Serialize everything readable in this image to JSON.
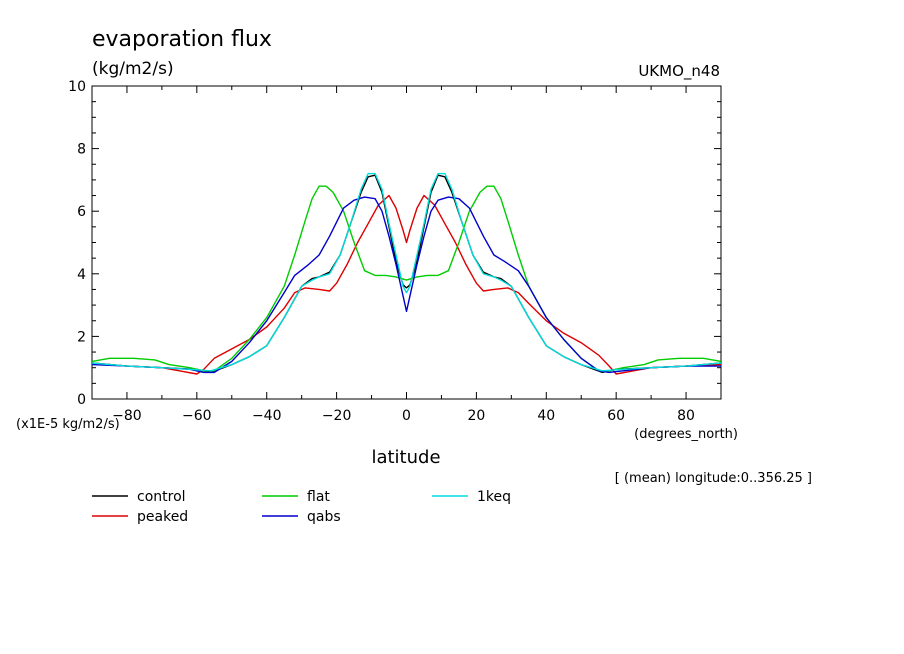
{
  "chart_data": {
    "type": "line",
    "title": "evaporation flux",
    "units_label": "(kg/m2/s)",
    "model_label": "UKMO_n48",
    "xlabel": "latitude",
    "x_units": "(degrees_north)",
    "y_scale_label": "(x1E-5 kg/m2/s)",
    "averaging_note": "[ (mean) longitude:0..356.25 ]",
    "xlim": [
      -90,
      90
    ],
    "ylim": [
      0,
      10
    ],
    "x_ticks": [
      -80,
      -60,
      -40,
      -20,
      0,
      20,
      40,
      60,
      80
    ],
    "x_tick_labels": [
      "−80",
      "−60",
      "−40",
      "−20",
      "0",
      "20",
      "40",
      "60",
      "80"
    ],
    "y_ticks": [
      0,
      2,
      4,
      6,
      8,
      10
    ],
    "y_tick_labels": [
      "0",
      "2",
      "4",
      "6",
      "8",
      "10"
    ],
    "grid": false,
    "series": [
      {
        "name": "control",
        "color": "#000000",
        "points": [
          [
            -90,
            1.15
          ],
          [
            -80,
            1.05
          ],
          [
            -70,
            1.0
          ],
          [
            -60,
            0.95
          ],
          [
            -56,
            0.85
          ],
          [
            -50,
            1.1
          ],
          [
            -45,
            1.35
          ],
          [
            -40,
            1.7
          ],
          [
            -35,
            2.6
          ],
          [
            -30,
            3.6
          ],
          [
            -27,
            3.85
          ],
          [
            -25,
            3.9
          ],
          [
            -22,
            4.05
          ],
          [
            -19,
            4.6
          ],
          [
            -16,
            5.6
          ],
          [
            -13,
            6.6
          ],
          [
            -11,
            7.1
          ],
          [
            -9,
            7.15
          ],
          [
            -7,
            6.6
          ],
          [
            -5,
            5.5
          ],
          [
            -3,
            4.4
          ],
          [
            -1,
            3.65
          ],
          [
            0,
            3.55
          ],
          [
            1,
            3.65
          ],
          [
            3,
            4.4
          ],
          [
            5,
            5.5
          ],
          [
            7,
            6.6
          ],
          [
            9,
            7.15
          ],
          [
            11,
            7.1
          ],
          [
            13,
            6.6
          ],
          [
            16,
            5.6
          ],
          [
            19,
            4.6
          ],
          [
            22,
            4.05
          ],
          [
            25,
            3.9
          ],
          [
            27,
            3.85
          ],
          [
            30,
            3.6
          ],
          [
            35,
            2.6
          ],
          [
            40,
            1.7
          ],
          [
            45,
            1.35
          ],
          [
            50,
            1.1
          ],
          [
            56,
            0.85
          ],
          [
            60,
            0.95
          ],
          [
            70,
            1.0
          ],
          [
            80,
            1.05
          ],
          [
            90,
            1.15
          ]
        ]
      },
      {
        "name": "peaked",
        "color": "#dd0000",
        "points": [
          [
            -90,
            1.15
          ],
          [
            -80,
            1.05
          ],
          [
            -70,
            1.0
          ],
          [
            -65,
            0.9
          ],
          [
            -60,
            0.8
          ],
          [
            -58,
            0.95
          ],
          [
            -55,
            1.3
          ],
          [
            -50,
            1.6
          ],
          [
            -45,
            1.9
          ],
          [
            -40,
            2.3
          ],
          [
            -35,
            2.9
          ],
          [
            -32,
            3.4
          ],
          [
            -29,
            3.55
          ],
          [
            -25,
            3.5
          ],
          [
            -22,
            3.45
          ],
          [
            -20,
            3.7
          ],
          [
            -17,
            4.3
          ],
          [
            -14,
            5.0
          ],
          [
            -11,
            5.6
          ],
          [
            -8,
            6.2
          ],
          [
            -5,
            6.5
          ],
          [
            -3,
            6.1
          ],
          [
            -1,
            5.4
          ],
          [
            0,
            5.0
          ],
          [
            1,
            5.4
          ],
          [
            3,
            6.1
          ],
          [
            5,
            6.5
          ],
          [
            8,
            6.2
          ],
          [
            11,
            5.6
          ],
          [
            14,
            5.0
          ],
          [
            17,
            4.3
          ],
          [
            20,
            3.7
          ],
          [
            22,
            3.45
          ],
          [
            25,
            3.5
          ],
          [
            29,
            3.55
          ],
          [
            32,
            3.4
          ],
          [
            35,
            3.05
          ],
          [
            40,
            2.5
          ],
          [
            45,
            2.1
          ],
          [
            50,
            1.8
          ],
          [
            55,
            1.4
          ],
          [
            58,
            1.05
          ],
          [
            60,
            0.8
          ],
          [
            65,
            0.9
          ],
          [
            70,
            1.0
          ],
          [
            80,
            1.05
          ],
          [
            90,
            1.1
          ]
        ]
      },
      {
        "name": "flat",
        "color": "#00cc00",
        "points": [
          [
            -90,
            1.2
          ],
          [
            -85,
            1.3
          ],
          [
            -78,
            1.3
          ],
          [
            -72,
            1.25
          ],
          [
            -68,
            1.1
          ],
          [
            -62,
            1.0
          ],
          [
            -58,
            0.9
          ],
          [
            -55,
            0.9
          ],
          [
            -50,
            1.3
          ],
          [
            -45,
            1.9
          ],
          [
            -40,
            2.6
          ],
          [
            -35,
            3.6
          ],
          [
            -32,
            4.6
          ],
          [
            -29,
            5.7
          ],
          [
            -27,
            6.4
          ],
          [
            -25,
            6.8
          ],
          [
            -23,
            6.8
          ],
          [
            -21,
            6.6
          ],
          [
            -18,
            6.0
          ],
          [
            -15,
            5.0
          ],
          [
            -12,
            4.1
          ],
          [
            -9,
            3.95
          ],
          [
            -6,
            3.95
          ],
          [
            -3,
            3.9
          ],
          [
            0,
            3.8
          ],
          [
            3,
            3.9
          ],
          [
            6,
            3.95
          ],
          [
            9,
            3.95
          ],
          [
            12,
            4.1
          ],
          [
            15,
            5.0
          ],
          [
            18,
            6.0
          ],
          [
            21,
            6.6
          ],
          [
            23,
            6.8
          ],
          [
            25,
            6.8
          ],
          [
            27,
            6.4
          ],
          [
            29,
            5.7
          ],
          [
            32,
            4.6
          ],
          [
            35,
            3.6
          ],
          [
            40,
            2.6
          ],
          [
            45,
            1.9
          ],
          [
            50,
            1.3
          ],
          [
            55,
            0.9
          ],
          [
            58,
            0.9
          ],
          [
            62,
            1.0
          ],
          [
            68,
            1.1
          ],
          [
            72,
            1.25
          ],
          [
            78,
            1.3
          ],
          [
            85,
            1.3
          ],
          [
            90,
            1.2
          ]
        ]
      },
      {
        "name": "qabs",
        "color": "#0000cc",
        "points": [
          [
            -90,
            1.1
          ],
          [
            -80,
            1.05
          ],
          [
            -70,
            1.0
          ],
          [
            -62,
            0.95
          ],
          [
            -58,
            0.85
          ],
          [
            -55,
            0.85
          ],
          [
            -50,
            1.2
          ],
          [
            -45,
            1.8
          ],
          [
            -40,
            2.5
          ],
          [
            -35,
            3.4
          ],
          [
            -32,
            3.95
          ],
          [
            -28,
            4.3
          ],
          [
            -25,
            4.6
          ],
          [
            -22,
            5.2
          ],
          [
            -18,
            6.1
          ],
          [
            -15,
            6.35
          ],
          [
            -12,
            6.45
          ],
          [
            -9,
            6.4
          ],
          [
            -7,
            6.0
          ],
          [
            -5,
            5.2
          ],
          [
            -3,
            4.3
          ],
          [
            -1,
            3.3
          ],
          [
            0,
            2.8
          ],
          [
            1,
            3.3
          ],
          [
            3,
            4.3
          ],
          [
            5,
            5.2
          ],
          [
            7,
            6.0
          ],
          [
            9,
            6.35
          ],
          [
            12,
            6.45
          ],
          [
            15,
            6.4
          ],
          [
            18,
            6.1
          ],
          [
            22,
            5.2
          ],
          [
            25,
            4.6
          ],
          [
            28,
            4.4
          ],
          [
            32,
            4.1
          ],
          [
            35,
            3.6
          ],
          [
            40,
            2.6
          ],
          [
            45,
            1.9
          ],
          [
            50,
            1.3
          ],
          [
            55,
            0.9
          ],
          [
            58,
            0.85
          ],
          [
            62,
            0.9
          ],
          [
            70,
            1.0
          ],
          [
            80,
            1.05
          ],
          [
            90,
            1.05
          ]
        ]
      },
      {
        "name": "1keq",
        "color": "#00dddd",
        "points": [
          [
            -90,
            1.15
          ],
          [
            -80,
            1.05
          ],
          [
            -70,
            1.0
          ],
          [
            -62,
            0.95
          ],
          [
            -56,
            0.9
          ],
          [
            -50,
            1.1
          ],
          [
            -45,
            1.35
          ],
          [
            -40,
            1.7
          ],
          [
            -35,
            2.6
          ],
          [
            -30,
            3.6
          ],
          [
            -27,
            3.8
          ],
          [
            -25,
            3.9
          ],
          [
            -22,
            4.0
          ],
          [
            -19,
            4.6
          ],
          [
            -16,
            5.6
          ],
          [
            -13,
            6.7
          ],
          [
            -11,
            7.2
          ],
          [
            -9,
            7.2
          ],
          [
            -7,
            6.7
          ],
          [
            -5,
            5.6
          ],
          [
            -3,
            4.6
          ],
          [
            -1,
            3.6
          ],
          [
            0,
            3.4
          ],
          [
            1,
            3.6
          ],
          [
            3,
            4.6
          ],
          [
            5,
            5.6
          ],
          [
            7,
            6.7
          ],
          [
            9,
            7.2
          ],
          [
            11,
            7.2
          ],
          [
            13,
            6.7
          ],
          [
            16,
            5.6
          ],
          [
            19,
            4.6
          ],
          [
            22,
            4.0
          ],
          [
            25,
            3.9
          ],
          [
            27,
            3.8
          ],
          [
            30,
            3.6
          ],
          [
            35,
            2.6
          ],
          [
            40,
            1.7
          ],
          [
            45,
            1.35
          ],
          [
            50,
            1.1
          ],
          [
            56,
            0.9
          ],
          [
            62,
            0.95
          ],
          [
            70,
            1.0
          ],
          [
            80,
            1.05
          ],
          [
            90,
            1.15
          ]
        ]
      }
    ]
  }
}
